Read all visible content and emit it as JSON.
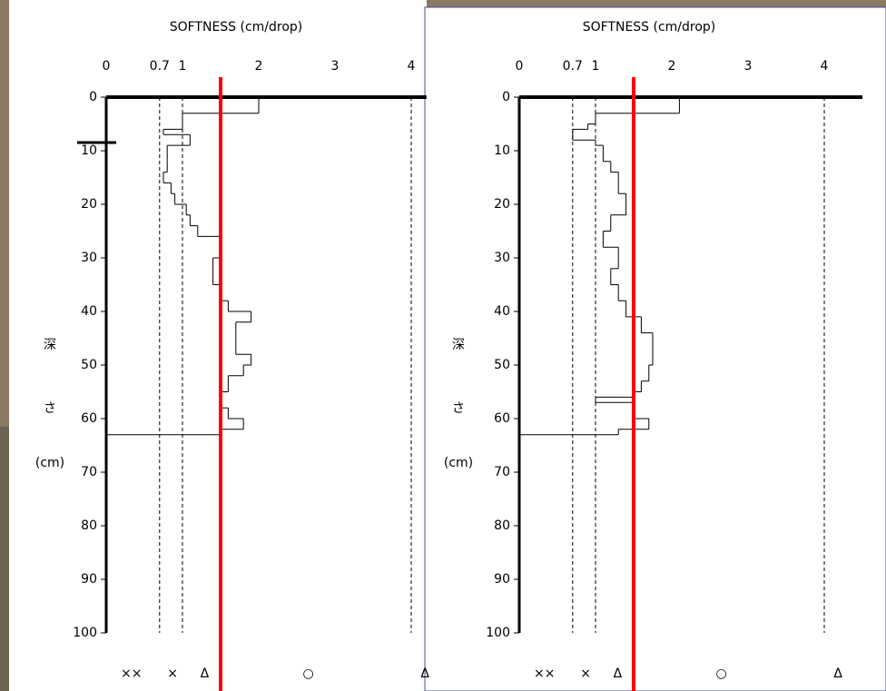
{
  "chart_data": [
    {
      "type": "step",
      "title": "SOFTNESS (cm/drop)",
      "y_label": [
        "深",
        "さ",
        "(cm)"
      ],
      "xlim": [
        0,
        4.2
      ],
      "xticks": [
        0,
        0.7,
        1,
        2,
        3,
        4
      ],
      "ylim": [
        0,
        100
      ],
      "yticks": [
        0,
        10,
        20,
        30,
        40,
        50,
        60,
        70,
        80,
        90,
        100
      ],
      "dashed_lines": [
        0.7,
        1,
        4
      ],
      "red_line": 1.5,
      "grades": [
        "××",
        "×",
        "Δ",
        "○",
        "Δ"
      ],
      "depths": [
        0,
        3,
        6,
        7,
        9,
        12,
        14,
        16,
        18,
        20,
        22,
        24,
        26,
        30,
        35,
        38,
        40,
        42,
        48,
        50,
        52,
        55,
        58,
        60,
        62,
        63
      ],
      "values": [
        2.0,
        1.0,
        0.75,
        1.1,
        0.8,
        0.8,
        0.75,
        0.85,
        0.9,
        1.05,
        1.1,
        1.2,
        1.5,
        1.4,
        1.5,
        1.6,
        1.9,
        1.7,
        1.9,
        1.8,
        1.6,
        1.5,
        1.6,
        1.8,
        1.5
      ]
    },
    {
      "type": "step",
      "title": "SOFTNESS (cm/drop)",
      "y_label": [
        "深",
        "さ",
        "(cm)"
      ],
      "xlim": [
        0,
        4.5
      ],
      "xticks": [
        0,
        0.7,
        1,
        2,
        3,
        4
      ],
      "ylim": [
        0,
        100
      ],
      "yticks": [
        0,
        10,
        20,
        30,
        40,
        50,
        60,
        70,
        80,
        90,
        100
      ],
      "dashed_lines": [
        0.7,
        1,
        4
      ],
      "red_line": 1.5,
      "grades": [
        "××",
        "×",
        "Δ",
        "○",
        "Δ"
      ],
      "depths": [
        0,
        3,
        5,
        6,
        8,
        9,
        12,
        14,
        18,
        22,
        25,
        28,
        32,
        35,
        38,
        41,
        44,
        50,
        53,
        55,
        56,
        57,
        60,
        62,
        63
      ],
      "values": [
        2.1,
        1.0,
        0.9,
        0.7,
        1.0,
        1.1,
        1.2,
        1.3,
        1.4,
        1.2,
        1.1,
        1.3,
        1.2,
        1.3,
        1.4,
        1.6,
        1.75,
        1.7,
        1.6,
        1.5,
        1.0,
        1.5,
        1.7,
        1.3
      ]
    }
  ]
}
